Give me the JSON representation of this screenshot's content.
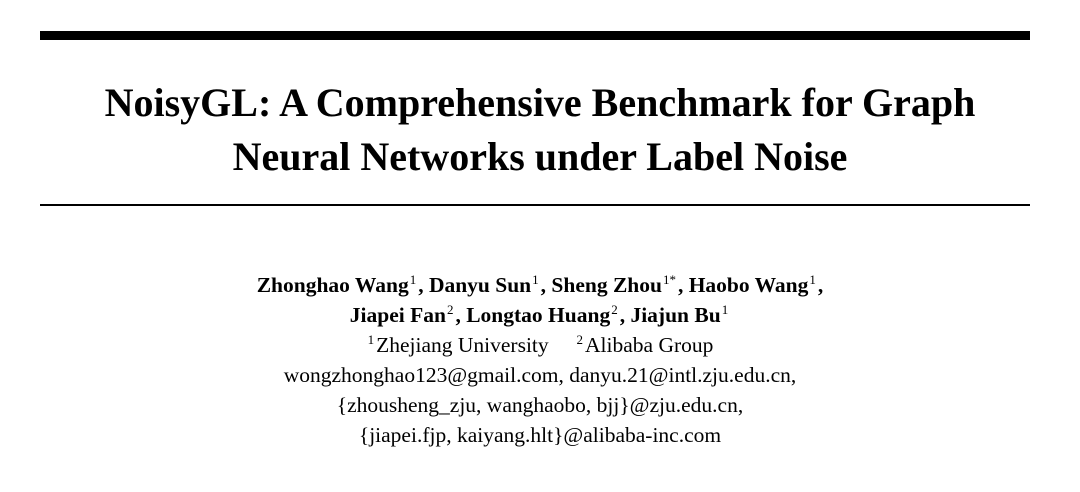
{
  "title": {
    "line1": "NoisyGL: A Comprehensive Benchmark for Graph",
    "line2": "Neural Networks under Label Noise"
  },
  "authors": [
    {
      "name": "Zhonghao Wang",
      "aff": "1"
    },
    {
      "name": "Danyu Sun",
      "aff": "1"
    },
    {
      "name": "Sheng Zhou",
      "aff": "1*"
    },
    {
      "name": "Haobo Wang",
      "aff": "1"
    },
    {
      "name": "Jiapei Fan",
      "aff": "2"
    },
    {
      "name": "Longtao Huang",
      "aff": "2"
    },
    {
      "name": "Jiajun Bu",
      "aff": "1"
    }
  ],
  "affiliations": [
    {
      "num": "1",
      "name": "Zhejiang University"
    },
    {
      "num": "2",
      "name": "Alibaba Group"
    }
  ],
  "emails": [
    "wongzhonghao123@gmail.com, danyu.21@intl.zju.edu.cn,",
    "{zhousheng_zju, wanghaobo, bjj}@zju.edu.cn,",
    "{jiapei.fjp, kaiyang.hlt}@alibaba-inc.com"
  ]
}
